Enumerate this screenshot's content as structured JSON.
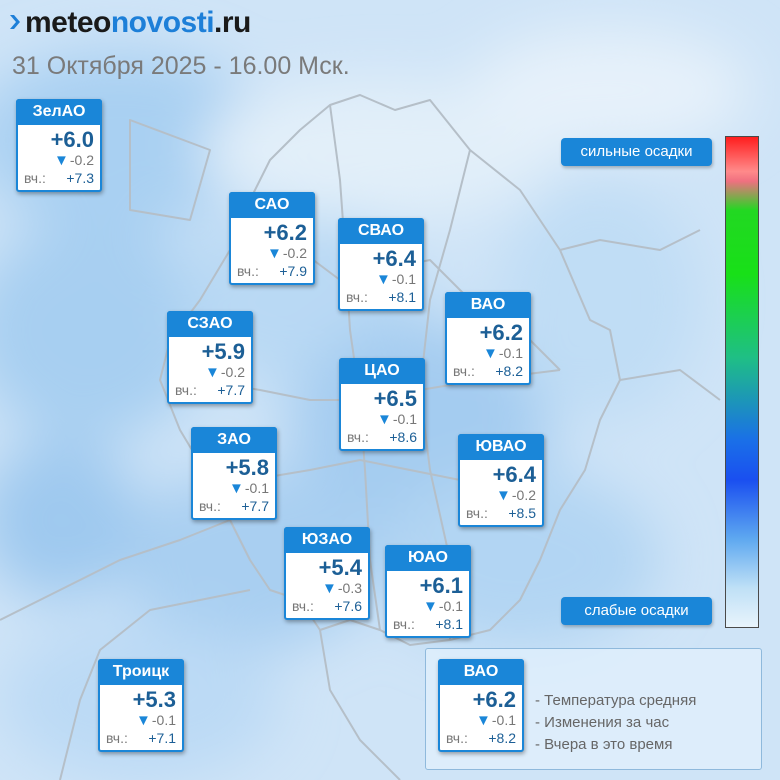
{
  "header": {
    "logo_prefix": "meteo",
    "logo_brand": "novosti",
    "logo_suffix": ".ru",
    "subtitle": "31 Октября 2025 - 16.00 Мск."
  },
  "colors": {
    "accent": "#1a86d8",
    "temperature_text": "#1c5f96",
    "scale_top": "#ff1e1e",
    "scale_bottom": "#e8f4fc"
  },
  "yesterday_label": "вч.:",
  "districts": [
    {
      "id": "zelao",
      "name": "ЗелАО",
      "temp": "+6.0",
      "change": "-0.2",
      "yesterday": "+7.3"
    },
    {
      "id": "sao",
      "name": "САО",
      "temp": "+6.2",
      "change": "-0.2",
      "yesterday": "+7.9"
    },
    {
      "id": "svao",
      "name": "СВАО",
      "temp": "+6.4",
      "change": "-0.1",
      "yesterday": "+8.1"
    },
    {
      "id": "vao",
      "name": "ВАО",
      "temp": "+6.2",
      "change": "-0.1",
      "yesterday": "+8.2"
    },
    {
      "id": "szao",
      "name": "СЗАО",
      "temp": "+5.9",
      "change": "-0.2",
      "yesterday": "+7.7"
    },
    {
      "id": "cao",
      "name": "ЦАО",
      "temp": "+6.5",
      "change": "-0.1",
      "yesterday": "+8.6"
    },
    {
      "id": "zao",
      "name": "ЗАО",
      "temp": "+5.8",
      "change": "-0.1",
      "yesterday": "+7.7"
    },
    {
      "id": "yuvao",
      "name": "ЮВАО",
      "temp": "+6.4",
      "change": "-0.2",
      "yesterday": "+8.5"
    },
    {
      "id": "yuzao",
      "name": "ЮЗАО",
      "temp": "+5.4",
      "change": "-0.3",
      "yesterday": "+7.6"
    },
    {
      "id": "yuao",
      "name": "ЮАО",
      "temp": "+6.1",
      "change": "-0.1",
      "yesterday": "+8.1"
    },
    {
      "id": "troitsk",
      "name": "Троицк",
      "temp": "+5.3",
      "change": "-0.1",
      "yesterday": "+7.1"
    }
  ],
  "precip_scale": {
    "high_label": "сильные осадки",
    "low_label": "слабые осадки"
  },
  "legend": {
    "example": {
      "name": "ВАО",
      "temp": "+6.2",
      "change": "-0.1",
      "yesterday": "+8.2"
    },
    "lines": [
      "- Температура средняя",
      "- Изменения за час",
      "- Вчера в это время"
    ]
  }
}
